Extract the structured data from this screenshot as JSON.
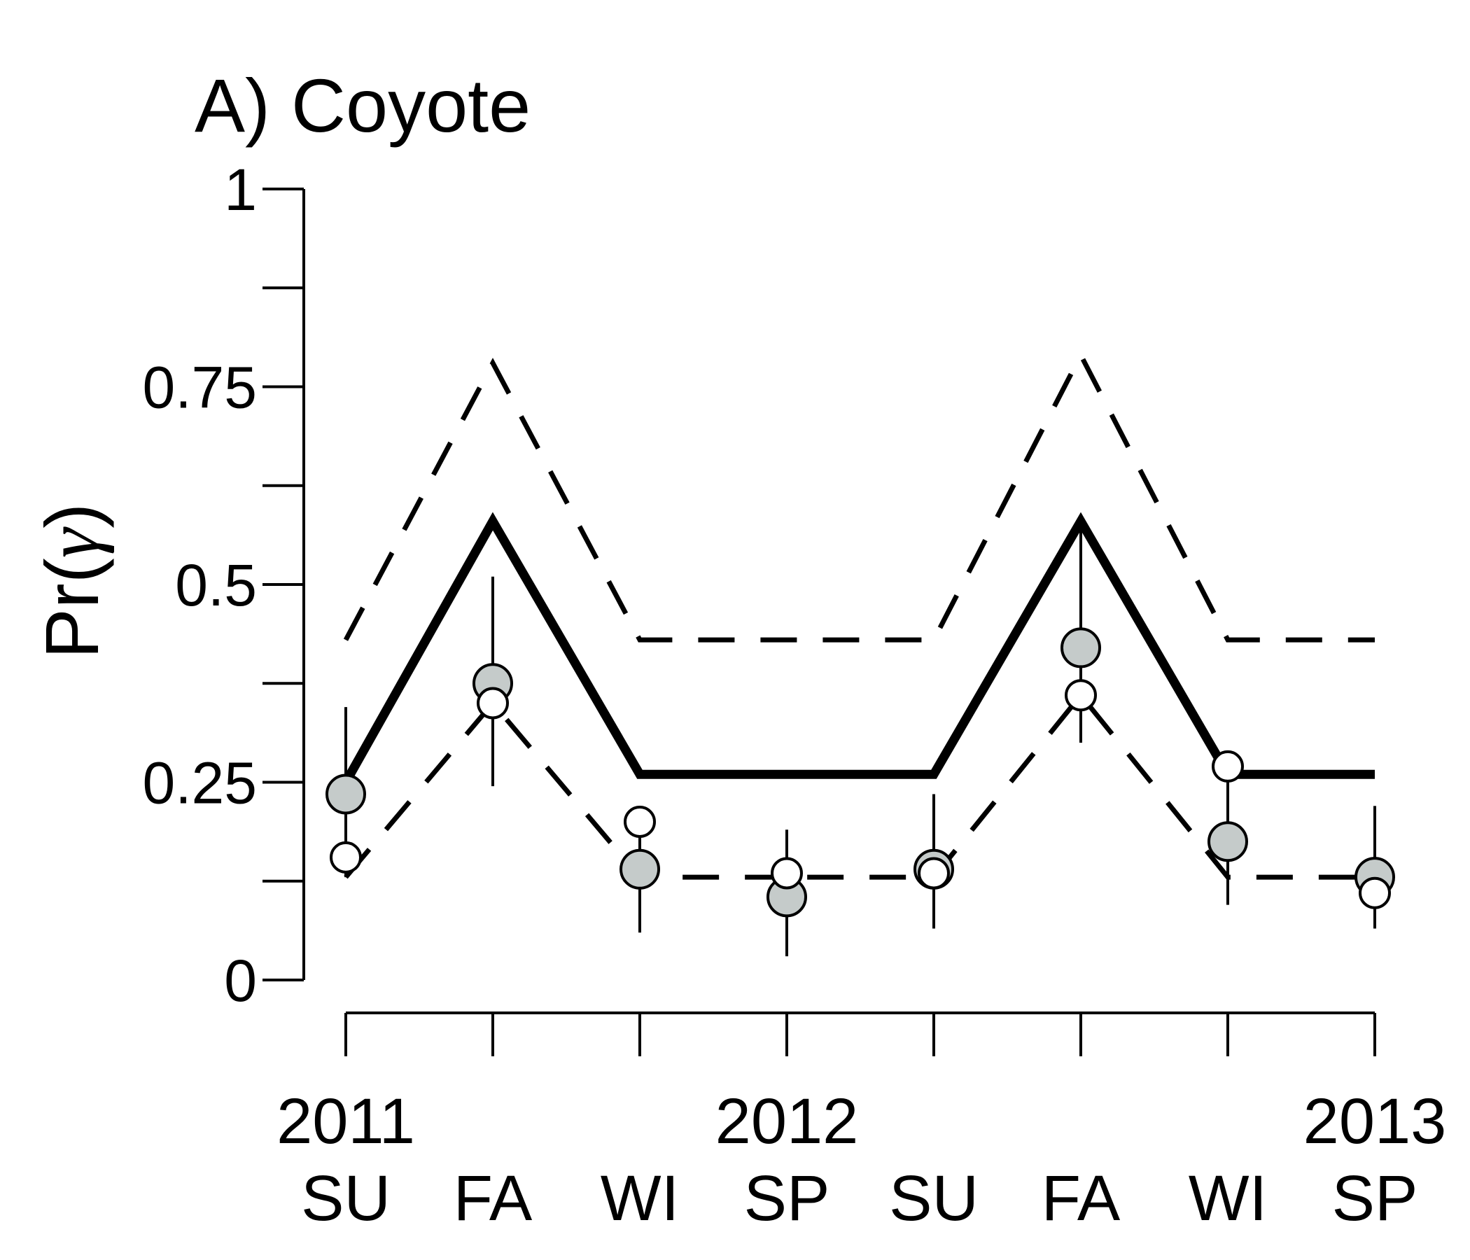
{
  "chart_data": {
    "type": "line",
    "title": "A) Coyote",
    "ylabel_prefix": "Pr(",
    "ylabel_symbol": "γ",
    "ylabel_suffix": ")",
    "ylim": [
      0,
      1
    ],
    "yticks": [
      {
        "value": 0,
        "label": "0"
      },
      {
        "value": 0.125,
        "label": ""
      },
      {
        "value": 0.25,
        "label": "0.25"
      },
      {
        "value": 0.375,
        "label": ""
      },
      {
        "value": 0.5,
        "label": "0.5"
      },
      {
        "value": 0.625,
        "label": ""
      },
      {
        "value": 0.75,
        "label": "0.75"
      },
      {
        "value": 0.875,
        "label": ""
      },
      {
        "value": 1,
        "label": "1"
      }
    ],
    "categories": [
      "SU",
      "FA",
      "WI",
      "SP",
      "SU",
      "FA",
      "WI",
      "SP"
    ],
    "years": [
      {
        "index": 0,
        "label": "2011"
      },
      {
        "index": 3,
        "label": "2012"
      },
      {
        "index": 7,
        "label": "2013"
      }
    ],
    "series": [
      {
        "style": "solid",
        "values": [
          0.25,
          0.58,
          0.26,
          0.26,
          0.26,
          0.58,
          0.26,
          0.26
        ]
      },
      {
        "style": "dashed",
        "values": [
          0.43,
          0.78,
          0.43,
          0.43,
          0.43,
          0.79,
          0.43,
          0.43
        ]
      },
      {
        "style": "dashed",
        "values": [
          0.13,
          0.35,
          0.13,
          0.13,
          0.13,
          0.36,
          0.13,
          0.13
        ]
      }
    ],
    "points": [
      {
        "style": "filled",
        "color": "#c5cbca",
        "values": [
          0.235,
          0.375,
          0.14,
          0.105,
          0.14,
          0.42,
          0.175,
          0.13
        ]
      },
      {
        "style": "open",
        "color": "#ffffff",
        "values": [
          0.155,
          0.35,
          0.2,
          0.135,
          0.135,
          0.36,
          0.27,
          0.11
        ]
      }
    ],
    "errorbars": [
      {
        "low": 0.13,
        "high": 0.345
      },
      {
        "low": 0.245,
        "high": 0.51
      },
      {
        "low": 0.06,
        "high": 0.2
      },
      {
        "low": 0.03,
        "high": 0.19
      },
      {
        "low": 0.065,
        "high": 0.235
      },
      {
        "low": 0.3,
        "high": 0.57
      },
      {
        "low": 0.095,
        "high": 0.27
      },
      {
        "low": 0.065,
        "high": 0.22
      }
    ]
  }
}
